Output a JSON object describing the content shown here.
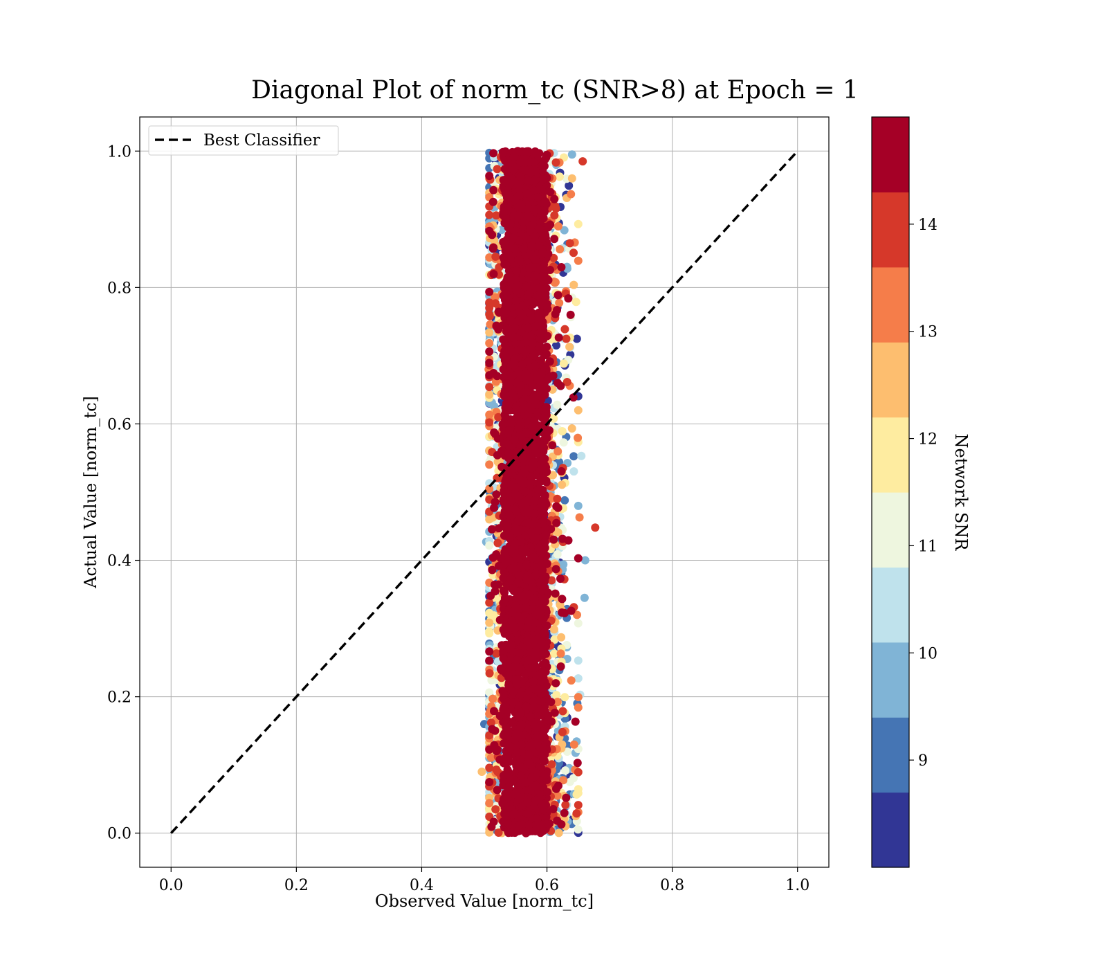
{
  "chart_data": {
    "type": "scatter",
    "title": "Diagonal Plot of norm_tc (SNR>8) at Epoch = 1",
    "xlabel": "Observed Value [norm_tc]",
    "ylabel": "Actual Value [norm_tc]",
    "xlim": [
      -0.05,
      1.05
    ],
    "ylim": [
      -0.05,
      1.05
    ],
    "x_ticks": [
      "0.0",
      "0.2",
      "0.4",
      "0.6",
      "0.8",
      "1.0"
    ],
    "y_ticks": [
      "0.0",
      "0.2",
      "0.4",
      "0.6",
      "0.8",
      "1.0"
    ],
    "grid": true,
    "legend": {
      "placement": "upper-left",
      "entries": [
        "Best Classifier"
      ]
    },
    "reference_line": {
      "name": "Best Classifier",
      "x": [
        0.0,
        1.0
      ],
      "y": [
        0.0,
        1.0
      ],
      "style": "dashed",
      "color": "#000000"
    },
    "scatter_cluster": {
      "x_center": 0.565,
      "x_spread": 0.045,
      "x_range": [
        0.5,
        0.68
      ],
      "y_range": [
        0.0,
        1.0
      ],
      "color_variable": "Network SNR"
    },
    "outlier_points": [
      {
        "x": 0.657,
        "y": 0.985,
        "snr": 13.8
      },
      {
        "x": 0.677,
        "y": 0.448,
        "snr": 13.8
      },
      {
        "x": 0.661,
        "y": 0.4,
        "snr": 9.8
      },
      {
        "x": 0.66,
        "y": 0.345,
        "snr": 9.8
      },
      {
        "x": 0.64,
        "y": 0.995,
        "snr": 9.8
      },
      {
        "x": 0.64,
        "y": 0.96,
        "snr": 12.4
      },
      {
        "x": 0.655,
        "y": 0.553,
        "snr": 10.4
      },
      {
        "x": 0.653,
        "y": 0.203,
        "snr": 10.4
      },
      {
        "x": 0.65,
        "y": 0.62,
        "snr": 12.4
      },
      {
        "x": 0.636,
        "y": 0.713,
        "snr": 12.4
      },
      {
        "x": 0.64,
        "y": 0.785,
        "snr": 11.2
      },
      {
        "x": 0.652,
        "y": 0.463,
        "snr": 13.0
      },
      {
        "x": 0.648,
        "y": 0.32,
        "snr": 13.0
      },
      {
        "x": 0.65,
        "y": 0.253,
        "snr": 10.4
      },
      {
        "x": 0.645,
        "y": 0.093,
        "snr": 13.0
      },
      {
        "x": 0.646,
        "y": 0.025,
        "snr": 12.4
      },
      {
        "x": 0.512,
        "y": 0.583,
        "snr": 12.4
      },
      {
        "x": 0.507,
        "y": 0.68,
        "snr": 13.0
      },
      {
        "x": 0.503,
        "y": 0.427,
        "snr": 9.8
      },
      {
        "x": 0.5,
        "y": 0.16,
        "snr": 9.2
      },
      {
        "x": 0.496,
        "y": 0.09,
        "snr": 12.4
      }
    ],
    "colorbar": {
      "label": "Network SNR",
      "range": [
        8.0,
        15.0
      ],
      "ticks": [
        "9",
        "10",
        "11",
        "12",
        "13",
        "14"
      ],
      "colors": [
        "#313695",
        "#4575b4",
        "#80b4d6",
        "#bfe2ec",
        "#eef6df",
        "#feeca0",
        "#fdbe6f",
        "#f57d4a",
        "#d6382a",
        "#a50026"
      ]
    }
  }
}
